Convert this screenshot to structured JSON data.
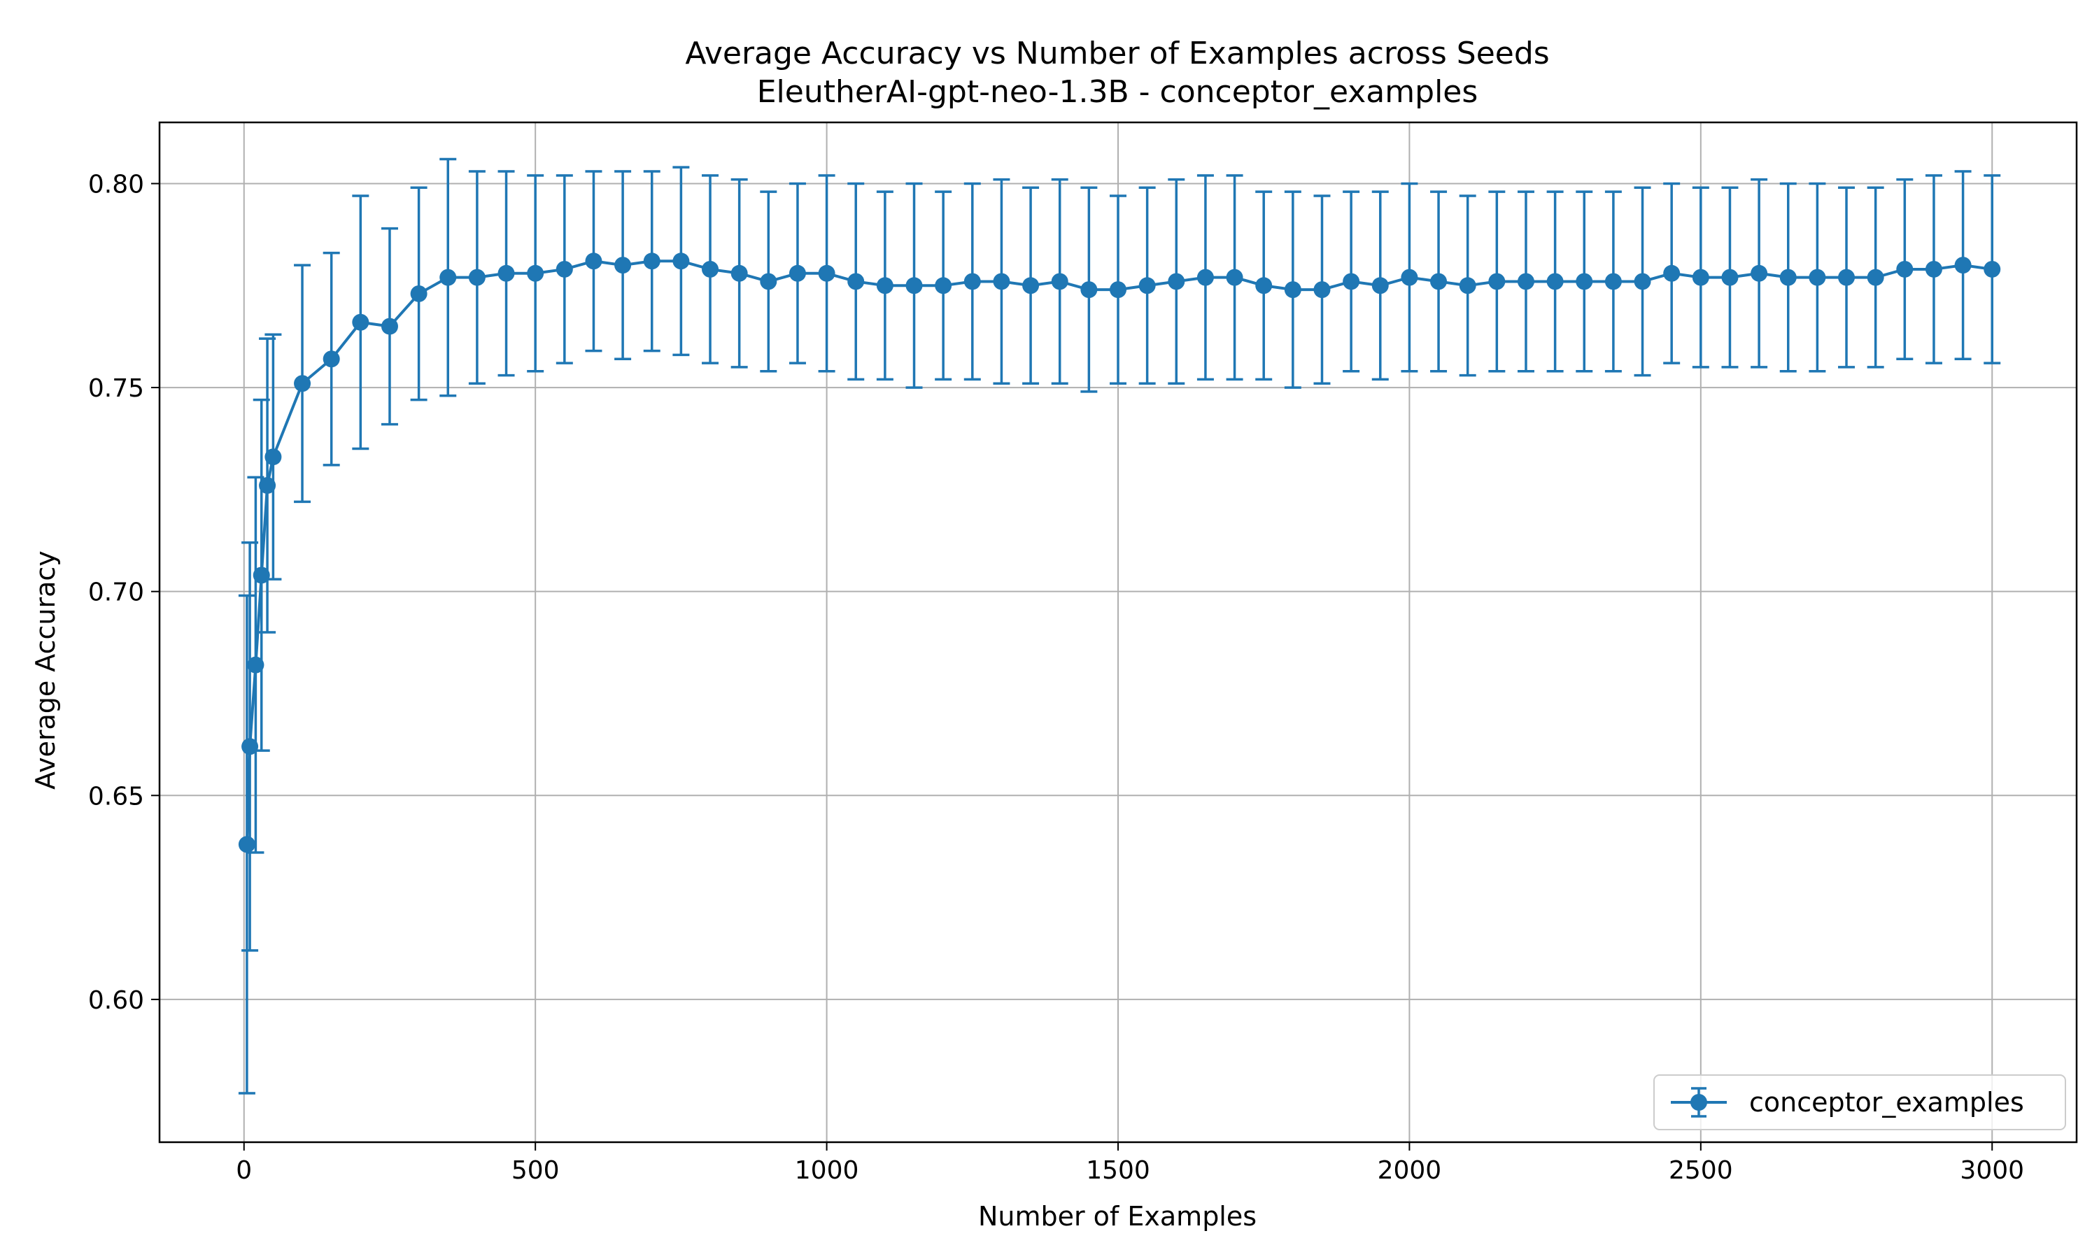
{
  "chart_data": {
    "type": "line",
    "title": "Average Accuracy vs Number of Examples across Seeds",
    "subtitle": "EleutherAI-gpt-neo-1.3B - conceptor_examples",
    "xlabel": "Number of Examples",
    "ylabel": "Average Accuracy",
    "xlim": [
      -145,
      3145
    ],
    "ylim": [
      0.565,
      0.815
    ],
    "xticks": [
      0,
      500,
      1000,
      1500,
      2000,
      2500,
      3000
    ],
    "yticks": [
      0.6,
      0.65,
      0.7,
      0.75,
      0.8
    ],
    "ytick_labels": [
      "0.60",
      "0.65",
      "0.70",
      "0.75",
      "0.80"
    ],
    "grid": true,
    "legend_position": "lower-right",
    "series": [
      {
        "name": "conceptor_examples",
        "color": "#1f77b4",
        "x": [
          5,
          10,
          20,
          30,
          40,
          50,
          100,
          150,
          200,
          250,
          300,
          350,
          400,
          450,
          500,
          550,
          600,
          650,
          700,
          750,
          800,
          850,
          900,
          950,
          1000,
          1050,
          1100,
          1150,
          1200,
          1250,
          1300,
          1350,
          1400,
          1450,
          1500,
          1550,
          1600,
          1650,
          1700,
          1750,
          1800,
          1850,
          1900,
          1950,
          2000,
          2050,
          2100,
          2150,
          2200,
          2250,
          2300,
          2350,
          2400,
          2450,
          2500,
          2550,
          2600,
          2650,
          2700,
          2750,
          2800,
          2850,
          2900,
          2950,
          3000
        ],
        "y": [
          0.638,
          0.662,
          0.682,
          0.704,
          0.726,
          0.733,
          0.751,
          0.757,
          0.766,
          0.765,
          0.773,
          0.777,
          0.777,
          0.778,
          0.778,
          0.779,
          0.781,
          0.78,
          0.781,
          0.781,
          0.779,
          0.778,
          0.776,
          0.778,
          0.778,
          0.776,
          0.775,
          0.775,
          0.775,
          0.776,
          0.776,
          0.775,
          0.776,
          0.774,
          0.774,
          0.775,
          0.776,
          0.777,
          0.777,
          0.775,
          0.774,
          0.774,
          0.776,
          0.775,
          0.777,
          0.776,
          0.775,
          0.776,
          0.776,
          0.776,
          0.776,
          0.776,
          0.776,
          0.778,
          0.777,
          0.777,
          0.778,
          0.777,
          0.777,
          0.777,
          0.777,
          0.779,
          0.779,
          0.78,
          0.779
        ],
        "err": [
          0.061,
          0.05,
          0.046,
          0.043,
          0.036,
          0.03,
          0.029,
          0.026,
          0.031,
          0.024,
          0.026,
          0.029,
          0.026,
          0.025,
          0.024,
          0.023,
          0.022,
          0.023,
          0.022,
          0.023,
          0.023,
          0.023,
          0.022,
          0.022,
          0.024,
          0.024,
          0.023,
          0.025,
          0.023,
          0.024,
          0.025,
          0.024,
          0.025,
          0.025,
          0.023,
          0.024,
          0.025,
          0.025,
          0.025,
          0.023,
          0.024,
          0.023,
          0.022,
          0.023,
          0.023,
          0.022,
          0.022,
          0.022,
          0.022,
          0.022,
          0.022,
          0.022,
          0.023,
          0.022,
          0.022,
          0.022,
          0.023,
          0.023,
          0.023,
          0.022,
          0.022,
          0.022,
          0.023,
          0.023,
          0.023
        ]
      }
    ]
  }
}
